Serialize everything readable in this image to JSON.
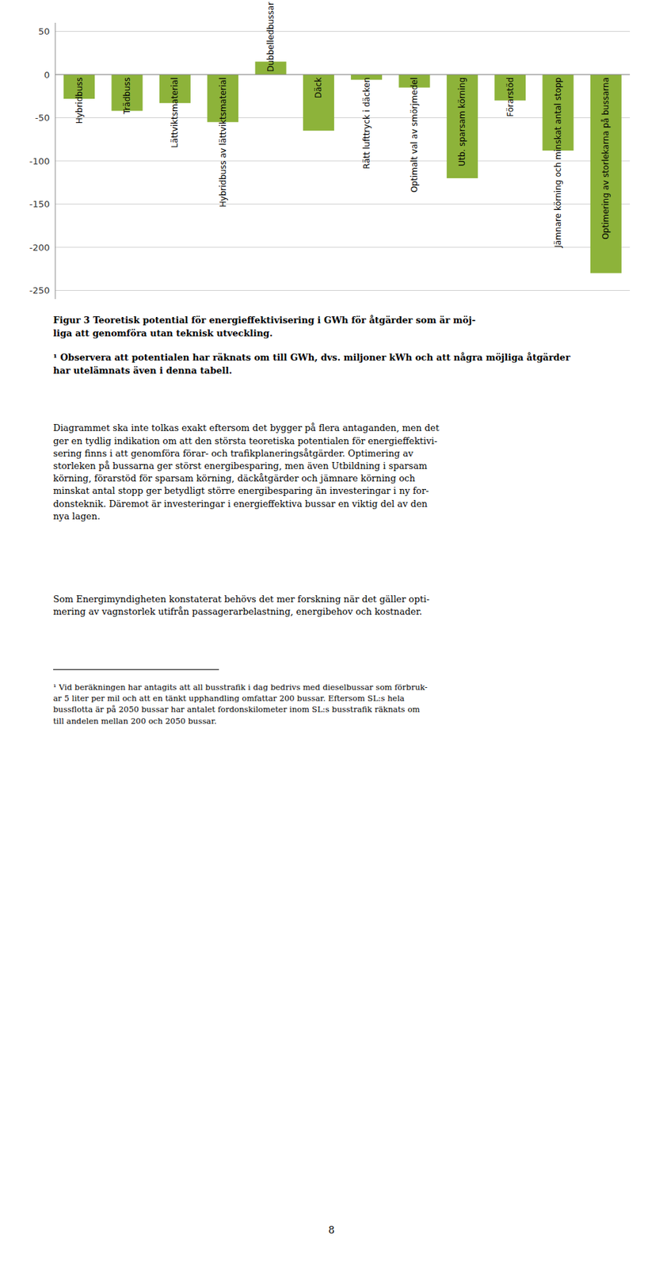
{
  "chart_data": {
    "type": "bar",
    "categories": [
      "Hybridbuss",
      "Trädbuss",
      "Lättviktsmaterial",
      "Hybridbuss av lättviktsmaterial",
      "Dubbelledbussar",
      "Däck",
      "Rätt lufttryck i däcken",
      "Optimalt val av smörjmedel",
      "Utb. sparsam körning",
      "Förarstöd",
      "Jämnare körning och minskat antal stopp",
      "Optimering av storlekarna på bussarna"
    ],
    "values": [
      -28,
      -42,
      -33,
      -55,
      15,
      -65,
      -6,
      -15,
      -120,
      -30,
      -88,
      -230
    ],
    "color": "#8db33a",
    "ylim": [
      -260,
      60
    ],
    "yticks": [
      50,
      0,
      -50,
      -100,
      -150,
      -200,
      -250
    ],
    "grid": true
  },
  "page_text": {
    "caption_bold": [
      "Figur 3 Teoretisk potential för energieffektivisering i GWh för åtgärder som är möj-",
      "liga att genomföra utan teknisk utveckling."
    ],
    "caption_note": [
      "¹ Observera att potentialen har räknats om till GWh, dvs. miljoner kWh och att några möjliga åtgärder",
      "har utelämnats även i denna tabell."
    ],
    "body1": [
      "Diagrammet ska inte tolkas exakt eftersom det bygger på flera antaganden, men det",
      "ger en tydlig indikation om att den största teoretiska potentialen för energieffektivi-",
      "sering finns i att genomföra förar- och trafikplaneringsåtgärder. Optimering av",
      "storleken på bussarna ger störst energibesparing, men även Utbildning i sparsam",
      "körning, förarstöd för sparsam körning, däckåtgärder och jämnare körning och",
      "minskat antal stopp ger betydligt större energibesparing än investeringar i ny for-",
      "donsteknik. Däremot är investeringar i energieffektiva bussar en viktig del av den",
      "nya lagen."
    ],
    "body2": [
      "Som Energimyndigheten konstaterat behövs det mer forskning när det gäller opti-",
      "mering av vagnstorlek utifrån passagerarbelastning, energibehov och kostnader."
    ],
    "footnote": [
      "¹ Vid beräkningen har antagits att all busstrafik i dag bedrivs med dieselbussar som förbruk-",
      "ar 5 liter per mil och att en tänkt upphandling omfattar 200 bussar. Eftersom SL:s hela",
      "bussflotta är på 2050 bussar har antalet fordonskilometer inom SL:s busstrafik räknats om",
      "till andelen mellan 200 och 2050 bussar."
    ],
    "page_number": "8"
  }
}
